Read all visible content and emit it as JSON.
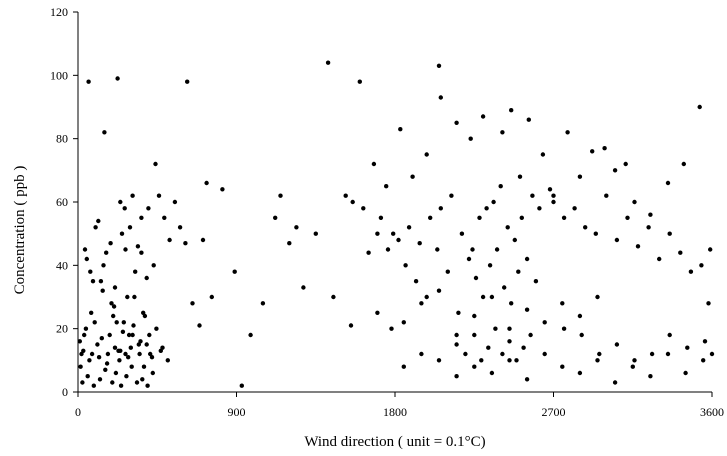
{
  "chart_data": {
    "type": "scatter",
    "xlabel": "Wind direction ( unit = 0.1°C)",
    "ylabel": "Concentration ( ppb )",
    "xlim": [
      0,
      3600
    ],
    "ylim": [
      0,
      120
    ],
    "xticks": [
      0,
      900,
      1800,
      2700,
      3600
    ],
    "yticks": [
      0,
      20,
      40,
      60,
      80,
      100,
      120
    ],
    "grid": false,
    "legend": "none",
    "marker_color": "#000000",
    "series": [
      {
        "x": [
          60,
          150,
          225,
          265,
          310,
          360,
          440,
          620,
          710,
          760,
          820,
          890,
          1150,
          1240,
          1420,
          1520,
          1600,
          1680,
          1750,
          1830,
          1900,
          1980,
          2050,
          2060,
          2150,
          2230,
          2300,
          2410,
          2460,
          2510,
          2560,
          2640,
          2700,
          2780,
          2850,
          2920,
          2990,
          3050,
          3110,
          3160,
          3250,
          3350,
          3440,
          3530,
          3580,
          20,
          40,
          70,
          100,
          130,
          160,
          190,
          220,
          250,
          280,
          310,
          340,
          370,
          400,
          430,
          460,
          490,
          520,
          550,
          580,
          610,
          650,
          690,
          730,
          30,
          80,
          120,
          170,
          210,
          240,
          270,
          300,
          350,
          390,
          420,
          470,
          510,
          15,
          45,
          75,
          110,
          140,
          180,
          205,
          235,
          260,
          290,
          320,
          355,
          380,
          410,
          445,
          480,
          25,
          55,
          90,
          125,
          155,
          195,
          215,
          245,
          275,
          305,
          335,
          365,
          395,
          425,
          10,
          35,
          65,
          95,
          135,
          165,
          200,
          230,
          255,
          285,
          315,
          345,
          375,
          405,
          50,
          85,
          115,
          145,
          185,
          210,
          240,
          270,
          295,
          325,
          360,
          390,
          930,
          980,
          1050,
          1120,
          1200,
          1280,
          1350,
          1450,
          1550,
          1650,
          1720,
          1790,
          1560,
          1620,
          1700,
          1760,
          1820,
          1880,
          1940,
          2000,
          2060,
          2120,
          2180,
          2240,
          2280,
          2320,
          2360,
          2400,
          2440,
          2480,
          2520,
          2580,
          2620,
          2680,
          1860,
          1920,
          1980,
          2040,
          2100,
          2160,
          2220,
          2260,
          2300,
          2340,
          2380,
          2420,
          2460,
          2500,
          2550,
          2600,
          2150,
          2200,
          2250,
          2290,
          2330,
          2370,
          2410,
          2450,
          2490,
          2530,
          2570,
          1700,
          1780,
          1850,
          1950,
          2050,
          2150,
          2250,
          2350,
          2450,
          2550,
          2650,
          2750,
          2850,
          2950,
          2700,
          2760,
          2820,
          2880,
          2940,
          3000,
          3060,
          3120,
          3180,
          3240,
          3300,
          3360,
          3420,
          3480,
          3540,
          3590,
          2760,
          2860,
          2960,
          3060,
          3160,
          3260,
          3360,
          3460,
          3560,
          3600,
          1850,
          1950,
          2050,
          2150,
          2250,
          2350,
          2450,
          2550,
          2650,
          2750,
          2850,
          2950,
          3050,
          3150,
          3250,
          3350,
          3450,
          3550
        ],
        "y": [
          98,
          82,
          99,
          58,
          62,
          55,
          72,
          98,
          48,
          30,
          64,
          38,
          62,
          52,
          104,
          62,
          98,
          72,
          65,
          83,
          68,
          75,
          103,
          93,
          85,
          80,
          87,
          82,
          89,
          68,
          86,
          75,
          62,
          82,
          68,
          76,
          77,
          70,
          72,
          60,
          56,
          66,
          72,
          90,
          28,
          12,
          45,
          38,
          52,
          35,
          44,
          28,
          22,
          50,
          30,
          18,
          46,
          25,
          58,
          40,
          62,
          55,
          48,
          60,
          52,
          47,
          28,
          21,
          66,
          13,
          12,
          11,
          12,
          14,
          13,
          12,
          14,
          12,
          15,
          11,
          13,
          10,
          8,
          20,
          25,
          15,
          32,
          18,
          27,
          10,
          22,
          18,
          30,
          16,
          24,
          12,
          20,
          14,
          3,
          5,
          2,
          4,
          7,
          3,
          6,
          2,
          5,
          8,
          3,
          4,
          2,
          6,
          16,
          18,
          10,
          22,
          17,
          9,
          24,
          13,
          19,
          11,
          21,
          15,
          8,
          18,
          42,
          35,
          54,
          40,
          47,
          33,
          60,
          45,
          52,
          38,
          44,
          36,
          2,
          18,
          28,
          55,
          47,
          33,
          50,
          30,
          21,
          44,
          55,
          50,
          60,
          58,
          50,
          45,
          48,
          52,
          47,
          55,
          58,
          62,
          50,
          45,
          55,
          58,
          60,
          65,
          52,
          48,
          55,
          62,
          58,
          64,
          40,
          35,
          30,
          45,
          38,
          25,
          42,
          36,
          30,
          40,
          45,
          33,
          28,
          38,
          42,
          35,
          15,
          12,
          18,
          10,
          14,
          20,
          12,
          16,
          10,
          14,
          18,
          25,
          20,
          22,
          28,
          32,
          18,
          24,
          30,
          20,
          26,
          22,
          28,
          24,
          30,
          60,
          55,
          58,
          52,
          50,
          62,
          48,
          55,
          46,
          52,
          42,
          50,
          44,
          38,
          40,
          45,
          20,
          18,
          12,
          15,
          10,
          12,
          18,
          14,
          16,
          12,
          8,
          12,
          10,
          5,
          8,
          6,
          10,
          4,
          12,
          8,
          6,
          10,
          3,
          8,
          5,
          12,
          6,
          10
        ]
      }
    ]
  }
}
